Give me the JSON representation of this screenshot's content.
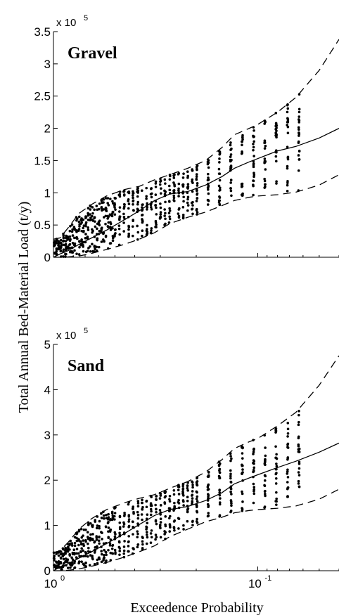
{
  "chart_data": [
    {
      "type": "scatter",
      "panel_label": "Gravel",
      "x_scale": "log",
      "x_direction": "decreasing",
      "xlim": [
        1,
        0.04
      ],
      "ylim": [
        0,
        350000
      ],
      "y_multiplier": {
        "base": "x 10",
        "exponent": "5"
      },
      "y_ticks": [
        {
          "value": 0,
          "label": "0"
        },
        {
          "value": 50000,
          "label": "0.5"
        },
        {
          "value": 100000,
          "label": "1"
        },
        {
          "value": 150000,
          "label": "1.5"
        },
        {
          "value": 200000,
          "label": "2"
        },
        {
          "value": 250000,
          "label": "2.5"
        },
        {
          "value": 300000,
          "label": "3"
        },
        {
          "value": 350000,
          "label": "3.5"
        }
      ],
      "x_ticks": [
        {
          "value": 1,
          "base": "10",
          "exponent": "0"
        },
        {
          "value": 0.1,
          "base": "10",
          "exponent": "-1"
        }
      ],
      "series": [
        {
          "style": "solid",
          "x": [
            1,
            0.93,
            0.85,
            0.75,
            0.65,
            0.55,
            0.45,
            0.38,
            0.32,
            0.27,
            0.22,
            0.18,
            0.15,
            0.13,
            0.11,
            0.1,
            0.08,
            0.065,
            0.05,
            0.04
          ],
          "y": [
            0,
            5000,
            10000,
            20000,
            30000,
            42000,
            58000,
            72000,
            88000,
            98000,
            102000,
            112000,
            125000,
            138000,
            148000,
            153000,
            165000,
            172000,
            185000,
            200000
          ]
        },
        {
          "style": "dashed",
          "x": [
            1,
            0.93,
            0.85,
            0.75,
            0.65,
            0.55,
            0.45,
            0.38,
            0.32,
            0.27,
            0.22,
            0.18,
            0.15,
            0.13,
            0.11,
            0.1,
            0.08,
            0.065,
            0.05,
            0.04
          ],
          "y": [
            28000,
            30000,
            45000,
            68000,
            82000,
            95000,
            105000,
            110000,
            120000,
            128000,
            138000,
            150000,
            170000,
            190000,
            200000,
            206000,
            225000,
            248000,
            290000,
            338000
          ]
        },
        {
          "style": "dashed",
          "x": [
            1,
            0.93,
            0.85,
            0.75,
            0.65,
            0.55,
            0.45,
            0.38,
            0.32,
            0.27,
            0.22,
            0.18,
            0.15,
            0.13,
            0.11,
            0.1,
            0.08,
            0.065,
            0.05,
            0.04
          ],
          "y": [
            0,
            0,
            500,
            2000,
            6000,
            12000,
            20000,
            28000,
            38000,
            52000,
            62000,
            70000,
            80000,
            88000,
            93000,
            95000,
            97000,
            101000,
            112000,
            128000
          ]
        }
      ]
    },
    {
      "type": "scatter",
      "panel_label": "Sand",
      "x_scale": "log",
      "x_direction": "decreasing",
      "xlim": [
        1,
        0.04
      ],
      "ylim": [
        0,
        500000
      ],
      "y_multiplier": {
        "base": "x 10",
        "exponent": "5"
      },
      "y_ticks": [
        {
          "value": 0,
          "label": "0"
        },
        {
          "value": 100000,
          "label": "1"
        },
        {
          "value": 200000,
          "label": "2"
        },
        {
          "value": 300000,
          "label": "3"
        },
        {
          "value": 400000,
          "label": "4"
        },
        {
          "value": 500000,
          "label": "5"
        }
      ],
      "x_ticks": [
        {
          "value": 1,
          "base": "10",
          "exponent": "0"
        },
        {
          "value": 0.1,
          "base": "10",
          "exponent": "-1"
        }
      ],
      "series": [
        {
          "style": "solid",
          "x": [
            1,
            0.93,
            0.85,
            0.75,
            0.65,
            0.55,
            0.45,
            0.38,
            0.32,
            0.27,
            0.22,
            0.18,
            0.15,
            0.13,
            0.11,
            0.1,
            0.08,
            0.065,
            0.05,
            0.04
          ],
          "y": [
            0,
            8000,
            15000,
            28000,
            42000,
            60000,
            82000,
            102000,
            122000,
            135000,
            142000,
            155000,
            172000,
            192000,
            205000,
            212000,
            228000,
            242000,
            262000,
            282000
          ]
        },
        {
          "style": "dashed",
          "x": [
            1,
            0.93,
            0.85,
            0.75,
            0.65,
            0.55,
            0.45,
            0.38,
            0.32,
            0.27,
            0.22,
            0.18,
            0.15,
            0.13,
            0.11,
            0.1,
            0.08,
            0.065,
            0.05,
            0.04
          ],
          "y": [
            40000,
            44000,
            62000,
            92000,
            115000,
            135000,
            150000,
            160000,
            168000,
            182000,
            197000,
            218000,
            245000,
            270000,
            285000,
            292000,
            320000,
            350000,
            410000,
            475000
          ]
        },
        {
          "style": "dashed",
          "x": [
            1,
            0.93,
            0.85,
            0.75,
            0.65,
            0.55,
            0.45,
            0.38,
            0.32,
            0.27,
            0.22,
            0.18,
            0.15,
            0.13,
            0.11,
            0.1,
            0.08,
            0.065,
            0.05,
            0.04
          ],
          "y": [
            0,
            0,
            1000,
            4000,
            10000,
            18000,
            30000,
            42000,
            55000,
            75000,
            92000,
            108000,
            118000,
            128000,
            133000,
            135000,
            138000,
            143000,
            158000,
            180000
          ]
        }
      ]
    }
  ],
  "ylabel": "Total Annual Bed-Material Load (t/y)",
  "xlabel": "Exceedence Probability"
}
